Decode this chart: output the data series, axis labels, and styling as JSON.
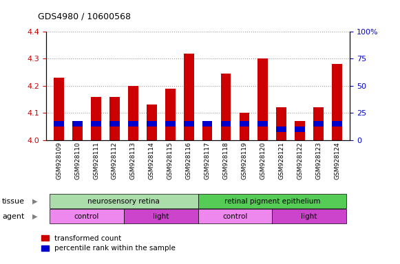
{
  "title": "GDS4980 / 10600568",
  "samples": [
    "GSM928109",
    "GSM928110",
    "GSM928111",
    "GSM928112",
    "GSM928113",
    "GSM928114",
    "GSM928115",
    "GSM928116",
    "GSM928117",
    "GSM928118",
    "GSM928119",
    "GSM928120",
    "GSM928121",
    "GSM928122",
    "GSM928123",
    "GSM928124"
  ],
  "red_values": [
    4.23,
    4.05,
    4.16,
    4.16,
    4.2,
    4.13,
    4.19,
    4.32,
    4.06,
    4.245,
    4.1,
    4.3,
    4.12,
    4.07,
    4.12,
    4.28
  ],
  "blue_percentiles": [
    15,
    15,
    15,
    15,
    15,
    15,
    15,
    15,
    15,
    15,
    15,
    15,
    10,
    10,
    15,
    15
  ],
  "ymin": 4.0,
  "ymax": 4.4,
  "y2min": 0,
  "y2max": 100,
  "yticks": [
    4.0,
    4.1,
    4.2,
    4.3,
    4.4
  ],
  "y2ticks": [
    0,
    25,
    50,
    75,
    100
  ],
  "y2ticklabels": [
    "0",
    "25",
    "50",
    "75",
    "100%"
  ],
  "tissue_groups": [
    {
      "label": "neurosensory retina",
      "start": 0,
      "end": 8,
      "color": "#aaddaa"
    },
    {
      "label": "retinal pigment epithelium",
      "start": 8,
      "end": 16,
      "color": "#55cc55"
    }
  ],
  "agent_groups": [
    {
      "label": "control",
      "start": 0,
      "end": 4,
      "color": "#ee88ee"
    },
    {
      "label": "light",
      "start": 4,
      "end": 8,
      "color": "#cc44cc"
    },
    {
      "label": "control",
      "start": 8,
      "end": 12,
      "color": "#ee88ee"
    },
    {
      "label": "light",
      "start": 12,
      "end": 16,
      "color": "#cc44cc"
    }
  ],
  "red_color": "#cc0000",
  "blue_color": "#0000cc",
  "bar_width": 0.55,
  "grid_color": "#888888",
  "bg_color": "#ffffff",
  "xlabel_color": "#cc0000",
  "y2label_color": "#0000cc",
  "tissue_row_label": "tissue",
  "agent_row_label": "agent",
  "legend_labels": [
    "transformed count",
    "percentile rank within the sample"
  ]
}
